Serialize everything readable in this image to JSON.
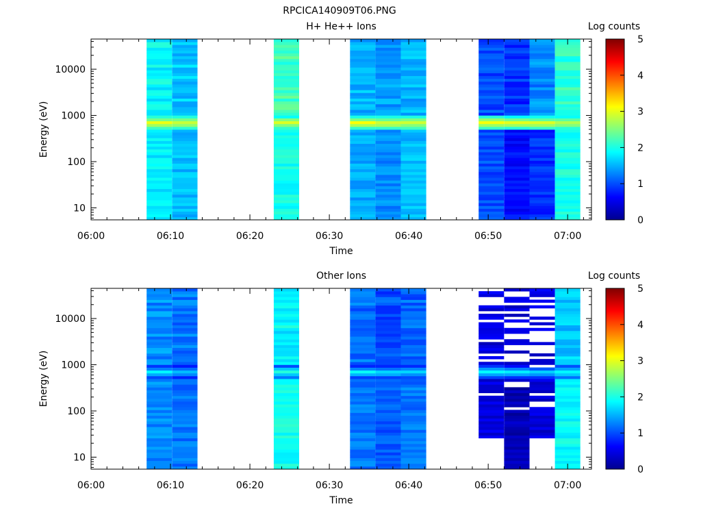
{
  "figure_title": "RPCICA140909T06.PNG",
  "chart_data": [
    {
      "type": "heatmap",
      "title": "H+ He++ Ions",
      "xlabel": "Time",
      "ylabel": "Energy (eV)",
      "colorbar_label": "Log counts",
      "colorbar_range": [
        0,
        5
      ],
      "colorbar_ticks": [
        "0",
        "1",
        "2",
        "3",
        "4",
        "5"
      ],
      "x_ticks": [
        "06:00",
        "06:10",
        "06:20",
        "06:30",
        "06:40",
        "06:50",
        "07:00"
      ],
      "x_range_minutes": [
        0,
        63
      ],
      "y_scale": "log",
      "y_ticks": [
        "10",
        "100",
        "1000",
        "10000"
      ],
      "y_range": [
        5.5,
        45000
      ],
      "columns": [
        {
          "start": "06:07.0",
          "end": "06:10.2",
          "background": 1.8,
          "peak": 3.1,
          "high_energy": 1.85
        },
        {
          "start": "06:10.2",
          "end": "06:13.4",
          "background": 1.55,
          "peak": 3.0,
          "high_energy": 1.6
        },
        {
          "start": "06:23.0",
          "end": "06:26.2",
          "background": 1.95,
          "peak": 3.0,
          "high_energy": 2.2
        },
        {
          "start": "06:32.6",
          "end": "06:35.8",
          "background": 1.45,
          "peak": 3.1,
          "high_energy": 1.5
        },
        {
          "start": "06:35.8",
          "end": "06:39.0",
          "background": 1.3,
          "peak": 3.0,
          "high_energy": 1.4
        },
        {
          "start": "06:39.0",
          "end": "06:42.2",
          "background": 1.55,
          "peak": 3.0,
          "high_energy": 1.5
        },
        {
          "start": "06:48.8",
          "end": "06:52.0",
          "background": 1.0,
          "peak": 3.1,
          "high_energy": 1.0
        },
        {
          "start": "06:52.0",
          "end": "06:55.2",
          "background": 0.65,
          "peak": 3.0,
          "high_energy": 0.85
        },
        {
          "start": "06:55.2",
          "end": "06:58.4",
          "background": 0.85,
          "peak": 3.0,
          "high_energy": 1.3
        },
        {
          "start": "06:58.4",
          "end": "07:01.6",
          "background": 2.0,
          "peak": 2.9,
          "high_energy": 2.1
        }
      ]
    },
    {
      "type": "heatmap",
      "title": "Other Ions",
      "xlabel": "Time",
      "ylabel": "Energy (eV)",
      "colorbar_label": "Log counts",
      "colorbar_range": [
        0,
        5
      ],
      "colorbar_ticks": [
        "0",
        "1",
        "2",
        "3",
        "4",
        "5"
      ],
      "x_ticks": [
        "06:00",
        "06:10",
        "06:20",
        "06:30",
        "06:40",
        "06:50",
        "07:00"
      ],
      "x_range_minutes": [
        0,
        63
      ],
      "y_scale": "log",
      "y_ticks": [
        "10",
        "100",
        "1000",
        "10000"
      ],
      "y_range": [
        5.5,
        45000
      ],
      "columns": [
        {
          "start": "06:07.0",
          "end": "06:10.2",
          "background": 1.3,
          "peak": 1.9,
          "high_energy": 1.3
        },
        {
          "start": "06:10.2",
          "end": "06:13.4",
          "background": 1.2,
          "peak": 1.7,
          "high_energy": 1.2
        },
        {
          "start": "06:23.0",
          "end": "06:26.2",
          "background": 1.95,
          "peak": 2.1,
          "high_energy": 1.85
        },
        {
          "start": "06:32.6",
          "end": "06:35.8",
          "background": 1.2,
          "peak": 1.9,
          "high_energy": 1.15
        },
        {
          "start": "06:35.8",
          "end": "06:39.0",
          "background": 1.05,
          "peak": 1.8,
          "high_energy": 1.0
        },
        {
          "start": "06:39.0",
          "end": "06:42.2",
          "background": 1.2,
          "peak": 1.8,
          "high_energy": 1.1
        },
        {
          "start": "06:48.8",
          "end": "06:52.0",
          "background": 0.45,
          "peak": 1.9,
          "high_energy": 0.45,
          "gaps": "sparse",
          "min_energy": 25
        },
        {
          "start": "06:52.0",
          "end": "06:55.2",
          "background": 0.2,
          "peak": 1.8,
          "high_energy": 0.4,
          "gaps": "sparse",
          "min_energy": 5.5
        },
        {
          "start": "06:55.2",
          "end": "06:58.4",
          "background": 0.4,
          "peak": 1.7,
          "high_energy": 0.5,
          "gaps": "sparse",
          "min_energy": 25
        },
        {
          "start": "06:58.4",
          "end": "07:01.6",
          "background": 1.9,
          "peak": 2.0,
          "high_energy": 1.6
        }
      ]
    }
  ]
}
